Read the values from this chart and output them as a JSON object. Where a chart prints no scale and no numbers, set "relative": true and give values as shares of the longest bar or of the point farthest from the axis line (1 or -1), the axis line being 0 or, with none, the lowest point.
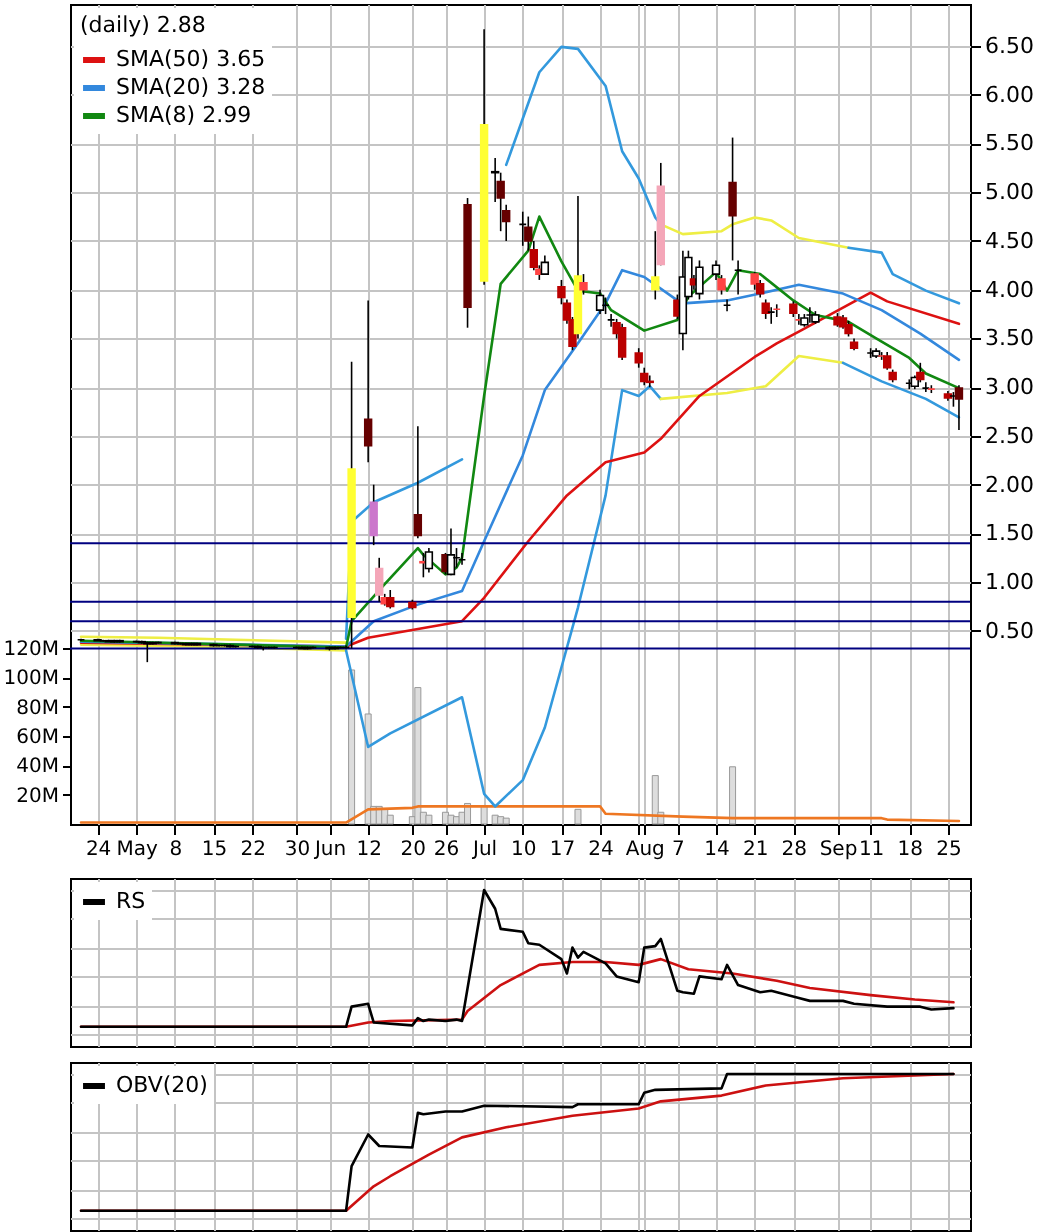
{
  "chart_data": [
    {
      "type": "candlestick",
      "legend_title": "(daily) 2.88",
      "legend": "top left",
      "grid": true,
      "x": [
        "--04-21",
        "--04-24",
        "--04-25",
        "--04-26",
        "--04-27",
        "--04-28",
        "--05-01",
        "--05-02",
        "--05-03",
        "--05-04",
        "--05-05",
        "--05-08",
        "--05-09",
        "--05-10",
        "--05-11",
        "--05-12",
        "--05-15",
        "--05-16",
        "--05-17",
        "--05-18",
        "--05-19",
        "--05-22",
        "--05-23",
        "--05-24",
        "--05-25",
        "--05-26",
        "--05-30",
        "--05-31",
        "--06-01",
        "--06-02",
        "--06-05",
        "--06-06",
        "--06-07",
        "--06-08",
        "--06-09",
        "--06-12",
        "--06-13",
        "--06-14",
        "--06-15",
        "--06-16",
        "--06-20",
        "--06-21",
        "--06-22",
        "--06-23",
        "--06-26",
        "--06-27",
        "--06-28",
        "--06-29",
        "--06-30",
        "--07-03",
        "--07-05",
        "--07-06",
        "--07-07",
        "--07-10",
        "--07-11",
        "--07-12",
        "--07-13",
        "--07-14",
        "--07-17",
        "--07-18",
        "--07-19",
        "--07-20",
        "--07-21",
        "--07-24",
        "--07-25",
        "--07-26",
        "--07-27",
        "--07-28",
        "--07-31",
        "--08-01",
        "--08-02",
        "--08-03",
        "--08-04",
        "--08-07",
        "--08-08",
        "--08-09",
        "--08-10",
        "--08-11",
        "--08-14",
        "--08-15",
        "--08-16",
        "--08-17",
        "--08-18",
        "--08-21",
        "--08-22",
        "--08-23",
        "--08-24",
        "--08-25",
        "--08-28",
        "--08-29",
        "--08-30",
        "--08-31",
        "--09-01",
        "--09-05",
        "--09-06",
        "--09-07",
        "--09-08",
        "--09-11",
        "--09-12",
        "--09-13",
        "--09-14",
        "--09-15",
        "--09-18",
        "--09-19",
        "--09-20",
        "--09-21",
        "--09-22",
        "--09-25",
        "--09-26",
        "--09-27"
      ],
      "ohlc": [
        [
          0.41,
          0.42,
          0.4,
          0.41
        ],
        [
          0.41,
          0.42,
          0.4,
          0.4
        ],
        [
          0.4,
          0.41,
          0.39,
          0.4
        ],
        [
          0.4,
          0.41,
          0.39,
          0.39
        ],
        [
          0.39,
          0.41,
          0.38,
          0.4
        ],
        [
          0.4,
          0.41,
          0.38,
          0.39
        ],
        [
          0.39,
          0.4,
          0.38,
          0.39
        ],
        [
          0.39,
          0.4,
          0.37,
          0.38
        ],
        [
          0.38,
          0.39,
          0.18,
          0.37
        ],
        [
          0.37,
          0.39,
          0.36,
          0.38
        ],
        [
          0.38,
          0.39,
          0.37,
          0.38
        ],
        [
          0.38,
          0.39,
          0.36,
          0.37
        ],
        [
          0.37,
          0.38,
          0.36,
          0.37
        ],
        [
          0.37,
          0.38,
          0.35,
          0.36
        ],
        [
          0.36,
          0.38,
          0.35,
          0.37
        ],
        [
          0.37,
          0.38,
          0.35,
          0.36
        ],
        [
          0.36,
          0.37,
          0.34,
          0.35
        ],
        [
          0.35,
          0.36,
          0.34,
          0.35
        ],
        [
          0.35,
          0.36,
          0.34,
          0.35
        ],
        [
          0.35,
          0.36,
          0.33,
          0.34
        ],
        [
          0.34,
          0.35,
          0.33,
          0.34
        ],
        [
          0.34,
          0.35,
          0.33,
          0.34
        ],
        [
          0.34,
          0.35,
          0.32,
          0.33
        ],
        [
          0.33,
          0.34,
          0.3,
          0.33
        ],
        [
          0.33,
          0.34,
          0.32,
          0.33
        ],
        [
          0.33,
          0.34,
          0.32,
          0.33
        ],
        [
          0.33,
          0.34,
          0.32,
          0.33
        ],
        [
          0.33,
          0.34,
          0.32,
          0.32
        ],
        [
          0.32,
          0.34,
          0.31,
          0.33
        ],
        [
          0.33,
          0.34,
          0.32,
          0.33
        ],
        [
          0.33,
          0.34,
          0.3,
          0.32
        ],
        [
          0.32,
          0.34,
          0.31,
          0.33
        ],
        [
          0.33,
          0.34,
          0.32,
          0.33
        ],
        [
          0.33,
          0.35,
          0.32,
          0.33
        ],
        [
          0.64,
          3.26,
          0.32,
          2.16
        ],
        [
          2.67,
          3.89,
          2.23,
          2.4
        ],
        [
          1.82,
          2.0,
          1.38,
          1.48
        ],
        [
          1.14,
          1.25,
          0.8,
          0.87
        ],
        [
          0.84,
          0.88,
          0.76,
          0.78
        ],
        [
          0.84,
          0.92,
          0.73,
          0.75
        ],
        [
          0.79,
          0.82,
          0.72,
          0.74
        ],
        [
          1.69,
          2.6,
          1.45,
          1.48
        ],
        [
          1.21,
          1.3,
          1.05,
          1.2
        ],
        [
          1.14,
          1.35,
          1.1,
          1.31
        ],
        [
          1.28,
          1.3,
          1.08,
          1.11
        ],
        [
          1.08,
          1.55,
          1.07,
          1.28
        ],
        [
          1.25,
          1.35,
          1.15,
          1.25
        ],
        [
          1.23,
          1.3,
          1.18,
          1.23
        ],
        [
          4.87,
          4.94,
          3.61,
          3.82
        ],
        [
          4.09,
          6.67,
          4.05,
          5.69
        ],
        [
          5.2,
          5.35,
          4.9,
          5.21
        ],
        [
          5.11,
          5.2,
          4.6,
          4.94
        ],
        [
          4.81,
          4.87,
          4.5,
          4.7
        ],
        [
          4.67,
          4.8,
          4.45,
          4.67
        ],
        [
          4.64,
          4.75,
          4.4,
          4.5
        ],
        [
          4.41,
          4.5,
          4.2,
          4.23
        ],
        [
          4.16,
          4.25,
          4.1,
          4.21
        ],
        [
          4.16,
          4.35,
          4.15,
          4.28
        ],
        [
          4.03,
          4.1,
          3.85,
          3.92
        ],
        [
          3.86,
          3.9,
          3.65,
          3.69
        ],
        [
          3.69,
          3.72,
          3.38,
          3.42
        ],
        [
          3.55,
          4.96,
          3.5,
          4.14
        ],
        [
          4.0,
          4.16,
          3.95,
          4.07
        ],
        [
          3.79,
          4.0,
          3.75,
          3.94
        ],
        [
          3.84,
          3.92,
          3.75,
          3.84
        ],
        [
          3.69,
          3.75,
          3.62,
          3.69
        ],
        [
          3.66,
          3.7,
          3.5,
          3.55
        ],
        [
          3.61,
          3.65,
          3.28,
          3.31
        ],
        [
          3.35,
          3.4,
          3.2,
          3.25
        ],
        [
          3.14,
          3.2,
          3.02,
          3.06
        ],
        [
          3.06,
          3.12,
          3.0,
          3.05
        ],
        [
          4.0,
          4.6,
          3.9,
          4.13
        ],
        [
          4.26,
          5.3,
          4.25,
          5.06
        ],
        [
          3.89,
          3.95,
          3.7,
          3.73
        ],
        [
          3.55,
          4.4,
          3.38,
          4.13
        ],
        [
          3.93,
          4.4,
          3.9,
          4.33
        ],
        [
          4.11,
          4.15,
          4.0,
          4.05
        ],
        [
          3.96,
          4.3,
          3.9,
          4.23
        ],
        [
          4.16,
          4.3,
          4.1,
          4.25
        ],
        [
          4.11,
          4.15,
          3.95,
          4.0
        ],
        [
          3.84,
          3.9,
          3.78,
          3.84
        ],
        [
          5.1,
          5.56,
          4.3,
          4.76
        ],
        [
          4.2,
          4.3,
          3.95,
          4.2
        ],
        [
          4.06,
          4.18,
          4.0,
          4.16
        ],
        [
          4.06,
          4.1,
          3.92,
          3.96
        ],
        [
          3.86,
          3.9,
          3.7,
          3.76
        ],
        [
          3.77,
          3.82,
          3.65,
          3.77
        ],
        [
          3.8,
          3.85,
          3.72,
          3.8
        ],
        [
          3.85,
          3.88,
          3.72,
          3.76
        ],
        [
          3.69,
          3.75,
          3.64,
          3.69
        ],
        [
          3.64,
          3.75,
          3.62,
          3.71
        ],
        [
          3.74,
          3.82,
          3.66,
          3.74
        ],
        [
          3.67,
          3.78,
          3.65,
          3.74
        ],
        [
          3.72,
          3.76,
          3.62,
          3.64
        ],
        [
          3.71,
          3.74,
          3.6,
          3.62
        ],
        [
          3.64,
          3.68,
          3.52,
          3.55
        ],
        [
          3.46,
          3.5,
          3.38,
          3.4
        ],
        [
          3.35,
          3.4,
          3.3,
          3.35
        ],
        [
          3.32,
          3.4,
          3.3,
          3.37
        ],
        [
          3.32,
          3.36,
          3.28,
          3.32
        ],
        [
          3.32,
          3.36,
          3.18,
          3.2
        ],
        [
          3.15,
          3.18,
          3.05,
          3.08
        ],
        [
          3.04,
          3.08,
          2.98,
          3.04
        ],
        [
          3.01,
          3.12,
          2.98,
          3.1
        ],
        [
          3.15,
          3.25,
          3.05,
          3.08
        ],
        [
          2.99,
          3.05,
          2.95,
          2.99
        ],
        [
          2.98,
          3.02,
          2.94,
          2.98
        ],
        [
          2.93,
          2.96,
          2.86,
          2.89
        ],
        [
          2.91,
          2.95,
          2.8,
          2.91
        ],
        [
          2.99,
          3.02,
          2.56,
          2.88
        ]
      ],
      "colors": [
        "#000000",
        "#000000",
        "#000000",
        "#000000",
        "#000000",
        "#000000",
        "#000000",
        "#000000",
        "#000000",
        "#000000",
        "#000000",
        "#000000",
        "#000000",
        "#000000",
        "#000000",
        "#000000",
        "#000000",
        "#000000",
        "#000000",
        "#000000",
        "#000000",
        "#000000",
        "#000000",
        "#000000",
        "#000000",
        "#000000",
        "#000000",
        "#000000",
        "#000000",
        "#000000",
        "#000000",
        "#000000",
        "#000000",
        "#000000",
        "#ffff33",
        "#660000",
        "#cc77cc",
        "#f4a6b8",
        "#ff4444",
        "#bb0000",
        "#bb0000",
        "#660000",
        "#ff4444",
        "#ffffff",
        "#660000",
        "#ffffff",
        "#000000",
        "#000000",
        "#660000",
        "#ffff33",
        "#000000",
        "#660000",
        "#660000",
        "#000000",
        "#660000",
        "#bb0000",
        "#ff4444",
        "#ffffff",
        "#bb0000",
        "#bb0000",
        "#bb0000",
        "#ffff33",
        "#ff4444",
        "#ffffff",
        "#000000",
        "#000000",
        "#bb0000",
        "#bb0000",
        "#bb0000",
        "#bb0000",
        "#bb0000",
        "#ffff33",
        "#f4a6b8",
        "#bb0000",
        "#ffffff",
        "#ffffff",
        "#bb0000",
        "#ffffff",
        "#ffffff",
        "#ff4444",
        "#000000",
        "#660000",
        "#000000",
        "#ff4444",
        "#bb0000",
        "#bb0000",
        "#000000",
        "#ff4444",
        "#bb0000",
        "#ff4444",
        "#ffffff",
        "#000000",
        "#ffffff",
        "#bb0000",
        "#bb0000",
        "#bb0000",
        "#bb0000",
        "#000000",
        "#ffffff",
        "#ff4444",
        "#bb0000",
        "#bb0000",
        "#000000",
        "#ffffff",
        "#bb0000",
        "#000000",
        "#ff4444",
        "#bb0000",
        "#000000",
        "#660000"
      ],
      "series": [
        {
          "type": "bar",
          "axis": "y2",
          "color": "#dddddd",
          "x": [
            "--06-09",
            "--06-12",
            "--06-13",
            "--06-14",
            "--06-15",
            "--06-16",
            "--06-20",
            "--06-21",
            "--06-22",
            "--06-23",
            "--06-26",
            "--06-27",
            "--06-28",
            "--06-29",
            "--06-30",
            "--07-03",
            "--07-05",
            "--07-06",
            "--07-07",
            "--07-20",
            "--08-03",
            "--08-04",
            "--08-17"
          ],
          "values": [
            105,
            75,
            12,
            12,
            10,
            6,
            5,
            93,
            8,
            6,
            8,
            6,
            5,
            8,
            14,
            12,
            6,
            5,
            4,
            10,
            33,
            8,
            39
          ]
        },
        {
          "type": "line",
          "axis": "y2",
          "color": "#ee7722",
          "x": [
            "--04-21",
            "--06-08",
            "--06-12",
            "--06-20",
            "--06-21",
            "--07-24",
            "--07-25",
            "--08-08",
            "--08-17",
            "--09-13",
            "--09-14",
            "--09-27"
          ],
          "values": [
            1,
            1,
            10,
            11,
            12,
            12,
            7,
            5,
            4,
            4,
            3,
            2
          ]
        },
        {
          "type": "line",
          "color": "#eeee44",
          "x": [
            "--04-21",
            "--05-05",
            "--05-19",
            "--06-08"
          ],
          "values": [
            0.44,
            0.43,
            0.41,
            0.38
          ]
        },
        {
          "type": "line",
          "color": "#eeee44",
          "x": [
            "--04-21",
            "--05-12",
            "--06-08"
          ],
          "values": [
            0.36,
            0.34,
            0.3
          ]
        },
        {
          "type": "line",
          "color": "#3399dd",
          "x": [
            "--06-08",
            "--06-09",
            "--06-13",
            "--06-21",
            "--06-29",
            "--07-03",
            "--07-07",
            "--07-13",
            "--07-17",
            "--07-20",
            "--07-25",
            "--07-28",
            "--07-31",
            "--08-03",
            "--08-04"
          ],
          "values": [
            0.42,
            1.62,
            1.82,
            2.02,
            2.26,
            null,
            5.28,
            6.23,
            6.49,
            6.47,
            6.09,
            5.42,
            5.14,
            4.74,
            4.67
          ]
        },
        {
          "type": "line",
          "color": "#eeee44",
          "x": [
            "--08-04",
            "--08-08",
            "--08-15",
            "--08-17",
            "--08-21",
            "--08-24",
            "--08-29",
            "--09-07"
          ],
          "values": [
            4.67,
            4.57,
            4.6,
            4.67,
            4.74,
            4.71,
            4.53,
            4.43
          ]
        },
        {
          "type": "line",
          "color": "#3399dd",
          "x": [
            "--09-07",
            "--09-13",
            "--09-15",
            "--09-21",
            "--09-27"
          ],
          "values": [
            4.43,
            4.38,
            4.16,
            3.99,
            3.86
          ]
        },
        {
          "type": "line",
          "color": "#3399dd",
          "x": [
            "--06-08",
            "--06-12",
            "--06-16",
            "--06-29",
            "--07-03",
            "--07-05",
            "--07-10",
            "--07-14",
            "--07-20",
            "--07-25",
            "--07-28",
            "--07-31",
            "--08-02",
            "--08-04"
          ],
          "values": [
            0.3,
            -0.69,
            -0.55,
            -0.18,
            -1.17,
            -1.3,
            -1.03,
            -0.49,
            0.74,
            1.89,
            2.97,
            2.91,
            3.01,
            2.88
          ]
        },
        {
          "type": "line",
          "color": "#eeee44",
          "x": [
            "--08-04",
            "--08-16",
            "--08-23",
            "--08-29",
            "--09-06"
          ],
          "values": [
            2.88,
            2.94,
            3.01,
            3.32,
            3.25
          ]
        },
        {
          "type": "line",
          "color": "#3399dd",
          "x": [
            "--09-06",
            "--09-13",
            "--09-21",
            "--09-27"
          ],
          "values": [
            3.25,
            3.06,
            2.88,
            2.69
          ]
        },
        {
          "type": "line",
          "name": "SMA(50) 3.65",
          "color": "#dd1111",
          "x": [
            "--04-21",
            "--06-08",
            "--06-12",
            "--06-29",
            "--07-03",
            "--07-11",
            "--07-18",
            "--07-25",
            "--08-01",
            "--08-04",
            "--08-11",
            "--08-21",
            "--08-25",
            "--08-29",
            "--09-11",
            "--09-14",
            "--09-27"
          ],
          "values": [
            0.38,
            0.34,
            0.43,
            0.6,
            0.84,
            1.42,
            1.89,
            2.23,
            2.33,
            2.47,
            2.91,
            3.31,
            3.45,
            3.57,
            3.97,
            3.88,
            3.65
          ]
        },
        {
          "type": "line",
          "name": "SMA(20) 3.28",
          "color": "#3388dd",
          "x": [
            "--04-21",
            "--06-08",
            "--06-13",
            "--06-21",
            "--06-29",
            "--07-03",
            "--07-10",
            "--07-14",
            "--07-20",
            "--07-25",
            "--07-28",
            "--08-01",
            "--08-07",
            "--08-08",
            "--08-16",
            "--08-22",
            "--08-29",
            "--09-06",
            "--09-13",
            "--09-20",
            "--09-27"
          ],
          "values": [
            0.39,
            0.34,
            0.6,
            0.77,
            0.91,
            1.42,
            2.3,
            2.97,
            3.45,
            3.86,
            4.2,
            4.13,
            3.89,
            3.86,
            3.89,
            3.96,
            4.05,
            3.96,
            3.79,
            3.55,
            3.28
          ]
        },
        {
          "type": "line",
          "name": "SMA(8) 2.99",
          "color": "#118811",
          "x": [
            "--04-21",
            "--05-19",
            "--06-08",
            "--06-09",
            "--06-15",
            "--06-21",
            "--06-22",
            "--06-26",
            "--06-28",
            "--06-29",
            "--07-03",
            "--07-06",
            "--07-11",
            "--07-13",
            "--07-17",
            "--07-20",
            "--07-24",
            "--07-26",
            "--08-01",
            "--08-07",
            "--08-09",
            "--08-14",
            "--08-16",
            "--08-18",
            "--08-22",
            "--08-28",
            "--09-01",
            "--09-07",
            "--09-12",
            "--09-18",
            "--09-21",
            "--09-27"
          ],
          "values": [
            0.4,
            0.36,
            0.33,
            0.6,
            0.98,
            1.35,
            1.28,
            1.08,
            1.15,
            1.25,
            2.91,
            4.06,
            4.4,
            4.75,
            4.29,
            3.99,
            3.96,
            3.79,
            3.58,
            3.69,
            3.93,
            4.18,
            3.99,
            4.2,
            4.16,
            3.89,
            3.74,
            3.67,
            3.5,
            3.3,
            3.14,
            2.99
          ]
        }
      ],
      "ref_lines": [
        {
          "axis": "y",
          "value": 1.4,
          "color": "#000080"
        },
        {
          "axis": "y",
          "value": 0.8,
          "color": "#000080"
        },
        {
          "axis": "y",
          "value": 0.6,
          "color": "#000080"
        },
        {
          "axis": "y",
          "value": 0.32,
          "color": "#000080"
        }
      ],
      "xlim": [
        "--04-19",
        "--09-29"
      ],
      "xticks": [
        {
          "value": "--04-24",
          "label": "24"
        },
        {
          "value": "--05-01",
          "label": "May"
        },
        {
          "value": "--05-08",
          "label": "8"
        },
        {
          "value": "--05-15",
          "label": "15"
        },
        {
          "value": "--05-22",
          "label": "22"
        },
        {
          "value": "--05-30",
          "label": "30"
        },
        {
          "value": "--06-05",
          "label": "Jun"
        },
        {
          "value": "--06-12",
          "label": "12"
        },
        {
          "value": "--06-20",
          "label": "20"
        },
        {
          "value": "--06-26",
          "label": "26"
        },
        {
          "value": "--07-03",
          "label": "Jul"
        },
        {
          "value": "--07-10",
          "label": "10"
        },
        {
          "value": "--07-17",
          "label": "17"
        },
        {
          "value": "--07-24",
          "label": "24"
        },
        {
          "value": "--07-31",
          "label": null
        },
        {
          "value": "--08-01",
          "label": "Aug"
        },
        {
          "value": "--08-07",
          "label": "7"
        },
        {
          "value": "--08-14",
          "label": "14"
        },
        {
          "value": "--08-21",
          "label": "21"
        },
        {
          "value": "--08-28",
          "label": "28"
        },
        {
          "value": "--09-05",
          "label": "Sep"
        },
        {
          "value": "--09-11",
          "label": "11"
        },
        {
          "value": "--09-18",
          "label": "18"
        },
        {
          "value": "--09-25",
          "label": "25"
        }
      ],
      "ylim": [
        -1.48,
        6.93
      ],
      "yticks": [
        {
          "value": 0.5,
          "label": "0.50"
        },
        {
          "value": 1,
          "label": "1.00"
        },
        {
          "value": 1.5,
          "label": "1.50"
        },
        {
          "value": 2,
          "label": "2.00"
        },
        {
          "value": 2.5,
          "label": "2.50"
        },
        {
          "value": 3,
          "label": "3.00"
        },
        {
          "value": 3.5,
          "label": "3.50"
        },
        {
          "value": 4,
          "label": "4.00"
        },
        {
          "value": 4.5,
          "label": "4.50"
        },
        {
          "value": 5,
          "label": "5.00"
        },
        {
          "value": 5.5,
          "label": "5.50"
        },
        {
          "value": 6,
          "label": "6.00"
        },
        {
          "value": 6.5,
          "label": "6.50"
        }
      ],
      "y2lim": [
        0,
        559
      ],
      "y2ticks": [
        {
          "value": 20,
          "label": "20M"
        },
        {
          "value": 40,
          "label": "40M"
        },
        {
          "value": 60,
          "label": "60M"
        },
        {
          "value": 80,
          "label": "80M"
        },
        {
          "value": 100,
          "label": "100M"
        },
        {
          "value": 120,
          "label": "120M"
        }
      ]
    },
    {
      "type": "line",
      "relative": true,
      "legend": "top left",
      "grid": true,
      "tick_labels": false,
      "xlim": [
        "--04-19",
        "--09-29"
      ],
      "xticks": [
        "--04-24",
        "--05-01",
        "--05-08",
        "--05-15",
        "--05-22",
        "--05-30",
        "--06-05",
        "--06-12",
        "--06-20",
        "--06-26",
        "--07-03",
        "--07-10",
        "--07-17",
        "--07-24",
        "--07-31",
        "--08-01",
        "--08-07",
        "--08-14",
        "--08-21",
        "--08-28",
        "--09-05",
        "--09-11",
        "--09-18",
        "--09-25"
      ],
      "series": [
        {
          "color": "#cc1111",
          "x": [
            "--04-21",
            "--06-08",
            "--06-12",
            "--06-16",
            "--06-29",
            "--06-30",
            "--07-06",
            "--07-11",
            "--07-13",
            "--07-19",
            "--07-25",
            "--07-31",
            "--08-04",
            "--08-09",
            "--08-17",
            "--08-25",
            "--08-31",
            "--09-11",
            "--09-19",
            "--09-26"
          ],
          "values": [
            0.05,
            0.05,
            0.08,
            0.09,
            0.1,
            0.16,
            0.34,
            0.44,
            0.48,
            0.5,
            0.5,
            0.48,
            0.52,
            0.45,
            0.42,
            0.37,
            0.32,
            0.27,
            0.24,
            0.22
          ]
        },
        {
          "name": "RS",
          "color": "#000000",
          "x": [
            "--04-21",
            "--06-08",
            "--06-09",
            "--06-12",
            "--06-13",
            "--06-20",
            "--06-21",
            "--06-22",
            "--06-23",
            "--06-26",
            "--06-28",
            "--06-29",
            "--07-03",
            "--07-05",
            "--07-06",
            "--07-10",
            "--07-11",
            "--07-13",
            "--07-17",
            "--07-18",
            "--07-19",
            "--07-20",
            "--07-21",
            "--07-25",
            "--07-27",
            "--07-31",
            "--08-01",
            "--08-03",
            "--08-04",
            "--08-07",
            "--08-08",
            "--08-10",
            "--08-11",
            "--08-15",
            "--08-16",
            "--08-18",
            "--08-22",
            "--08-24",
            "--08-29",
            "--08-31",
            "--09-06",
            "--09-08",
            "--09-14",
            "--09-20",
            "--09-22",
            "--09-26"
          ],
          "values": [
            0.05,
            0.05,
            0.19,
            0.21,
            0.08,
            0.06,
            0.11,
            0.09,
            0.1,
            0.09,
            0.1,
            0.09,
            1.0,
            0.87,
            0.73,
            0.71,
            0.63,
            0.62,
            0.52,
            0.42,
            0.6,
            0.53,
            0.57,
            0.49,
            0.4,
            0.36,
            0.6,
            0.61,
            0.66,
            0.3,
            0.29,
            0.28,
            0.4,
            0.38,
            0.48,
            0.34,
            0.29,
            0.3,
            0.25,
            0.23,
            0.23,
            0.21,
            0.19,
            0.19,
            0.17,
            0.18
          ]
        }
      ]
    },
    {
      "type": "line",
      "relative": true,
      "legend": "top left",
      "grid": true,
      "tick_labels": false,
      "xlim": [
        "--04-19",
        "--09-29"
      ],
      "xticks": [
        "--04-24",
        "--05-01",
        "--05-08",
        "--05-15",
        "--05-22",
        "--05-30",
        "--06-05",
        "--06-12",
        "--06-20",
        "--06-26",
        "--07-03",
        "--07-10",
        "--07-17",
        "--07-24",
        "--07-31",
        "--08-01",
        "--08-07",
        "--08-14",
        "--08-21",
        "--08-28",
        "--09-05",
        "--09-11",
        "--09-18",
        "--09-25"
      ],
      "series": [
        {
          "color": "#cc1111",
          "x": [
            "--04-21",
            "--06-08",
            "--06-13",
            "--06-16",
            "--06-23",
            "--06-29",
            "--07-07",
            "--07-19",
            "--07-31",
            "--08-04",
            "--08-15",
            "--08-23",
            "--09-06",
            "--09-26"
          ],
          "values": [
            0.05,
            0.05,
            0.22,
            0.29,
            0.44,
            0.56,
            0.63,
            0.71,
            0.76,
            0.81,
            0.85,
            0.92,
            0.97,
            1.0
          ]
        },
        {
          "name": "OBV(20)",
          "color": "#000000",
          "x": [
            "--04-21",
            "--06-08",
            "--06-09",
            "--06-12",
            "--06-14",
            "--06-20",
            "--06-21",
            "--06-22",
            "--06-26",
            "--06-29",
            "--07-03",
            "--07-19",
            "--07-20",
            "--07-31",
            "--08-01",
            "--08-03",
            "--08-15",
            "--08-16",
            "--09-26"
          ],
          "values": [
            0.05,
            0.05,
            0.36,
            0.58,
            0.5,
            0.49,
            0.73,
            0.72,
            0.74,
            0.74,
            0.78,
            0.77,
            0.79,
            0.79,
            0.87,
            0.89,
            0.9,
            1.0,
            1.0
          ]
        }
      ]
    }
  ]
}
